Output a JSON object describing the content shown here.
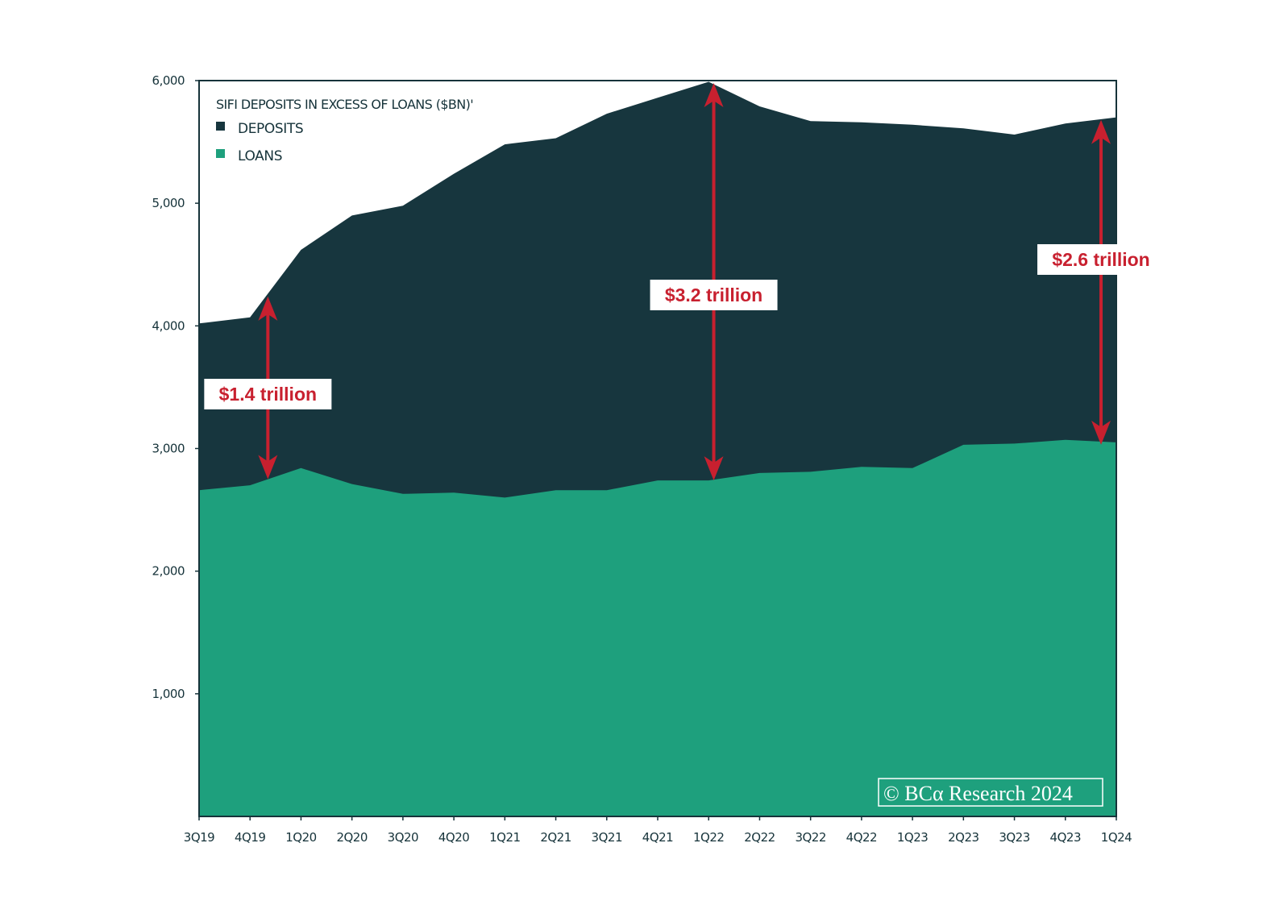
{
  "chart_data": {
    "type": "area",
    "title": "SIFI DEPOSITS IN EXCESS OF LOANS ($BN)'",
    "categories": [
      "3Q19",
      "4Q19",
      "1Q20",
      "2Q20",
      "3Q20",
      "4Q20",
      "1Q21",
      "2Q21",
      "3Q21",
      "4Q21",
      "1Q22",
      "2Q22",
      "3Q22",
      "4Q22",
      "1Q23",
      "2Q23",
      "3Q23",
      "4Q23",
      "1Q24"
    ],
    "series": [
      {
        "name": "DEPOSITS",
        "color": "#17363e",
        "values": [
          4020,
          4070,
          4620,
          4900,
          4980,
          5240,
          5480,
          5530,
          5730,
          5860,
          5990,
          5790,
          5670,
          5660,
          5640,
          5610,
          5560,
          5650,
          5700
        ]
      },
      {
        "name": "LOANS",
        "color": "#1ea07d",
        "values": [
          2660,
          2700,
          2840,
          2710,
          2630,
          2640,
          2600,
          2660,
          2660,
          2740,
          2740,
          2800,
          2810,
          2850,
          2840,
          3030,
          3040,
          3070,
          3050
        ]
      }
    ],
    "ylim": [
      0,
      6000
    ],
    "yticks": [
      1000,
      2000,
      3000,
      4000,
      5000,
      6000
    ],
    "ytick_labels": [
      "1,000",
      "2,000",
      "3,000",
      "4,000",
      "5,000",
      "6,000"
    ],
    "xlabel": "",
    "ylabel": "",
    "legend_position": "top-left",
    "annotations": [
      {
        "label": "$1.4 trillion",
        "x": 1.35,
        "from": 2750,
        "to": 4240
      },
      {
        "label": "$3.2 trillion",
        "x": 10.1,
        "from": 2740,
        "to": 5980
      },
      {
        "label": "$2.6 trillion",
        "x": 17.7,
        "from": 3030,
        "to": 5680
      }
    ],
    "watermark": "© BCα Research 2024",
    "annotation_color": "#c8202f"
  }
}
